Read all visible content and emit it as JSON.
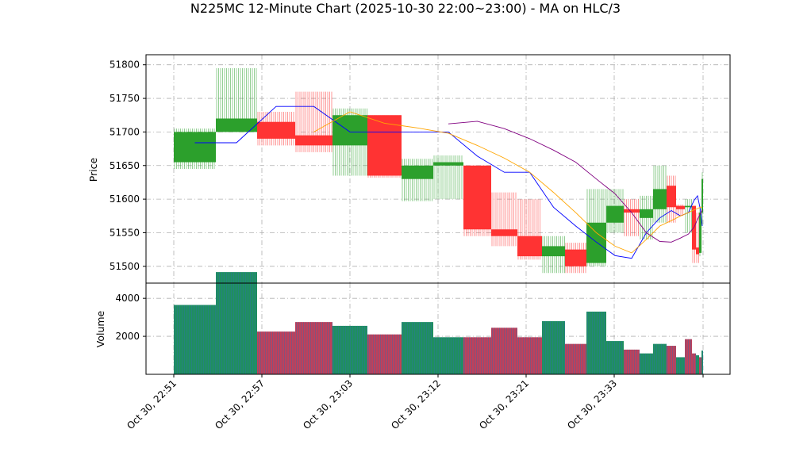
{
  "chart_data": {
    "type": "candlestick",
    "title": "N225MC 12-Minute Chart (2025-10-30 22:00~23:00) - MA on HLC/3",
    "price_panel": {
      "ylabel": "Price",
      "ylim": [
        51475,
        1815
      ],
      "yticks": [
        51500,
        51550,
        51600,
        51650,
        51700,
        51750,
        51800
      ],
      "candles": [
        {
          "o": 51655,
          "h": 51705,
          "l": 51645,
          "c": 51700
        },
        {
          "o": 51700,
          "h": 51795,
          "l": 51700,
          "c": 51720
        },
        {
          "o": 51715,
          "h": 51730,
          "l": 51680,
          "c": 51690
        },
        {
          "o": 51695,
          "h": 51760,
          "l": 51670,
          "c": 51680
        },
        {
          "o": 51680,
          "h": 51735,
          "l": 51635,
          "c": 51725
        },
        {
          "o": 51725,
          "h": 51725,
          "l": 51632,
          "c": 51635
        },
        {
          "o": 51630,
          "h": 51660,
          "l": 51597,
          "c": 51650
        },
        {
          "o": 51650,
          "h": 51665,
          "l": 51600,
          "c": 51655
        },
        {
          "o": 51650,
          "h": 51650,
          "l": 51545,
          "c": 51555
        },
        {
          "o": 51555,
          "h": 51610,
          "l": 51530,
          "c": 51545
        },
        {
          "o": 51545,
          "h": 51600,
          "l": 51510,
          "c": 51515
        },
        {
          "o": 51515,
          "h": 51545,
          "l": 51490,
          "c": 51530
        },
        {
          "o": 51525,
          "h": 51535,
          "l": 51490,
          "c": 51500
        },
        {
          "o": 51505,
          "h": 51615,
          "l": 51500,
          "c": 51565
        },
        {
          "o": 51565,
          "h": 51615,
          "l": 51550,
          "c": 51590
        },
        {
          "o": 51585,
          "h": 51600,
          "l": 51545,
          "c": 51580
        },
        {
          "o": 51572,
          "h": 51605,
          "l": 51540,
          "c": 51585
        },
        {
          "o": 51585,
          "h": 51650,
          "l": 51565,
          "c": 51615
        },
        {
          "o": 51620,
          "h": 51635,
          "l": 51565,
          "c": 51588
        },
        {
          "o": 51590,
          "h": 51592,
          "l": 51575,
          "c": 51585
        },
        {
          "o": 51588,
          "h": 51600,
          "l": 51550,
          "c": 51590
        },
        {
          "o": 51590,
          "h": 51590,
          "l": 51505,
          "c": 51525
        },
        {
          "o": 51528,
          "h": 51580,
          "l": 51505,
          "c": 51518
        },
        {
          "o": 51520,
          "h": 51590,
          "l": 51515,
          "c": 51580
        },
        {
          "o": 51580,
          "h": 51640,
          "l": 51560,
          "c": 51630
        }
      ],
      "ma_series": [
        {
          "name": "MA-blue",
          "color": "#0000ff",
          "values": [
            51684,
            51684,
            51738,
            51738,
            51700,
            51700,
            51700,
            51700,
            51664,
            51640,
            51640,
            51588,
            51560,
            51536,
            51516,
            51512,
            51550,
            51572,
            51583,
            51575,
            51580,
            51598,
            51605,
            51585,
            51560
          ]
        },
        {
          "name": "MA-orange",
          "color": "#ffa500",
          "values": [
            51700,
            51730,
            51713,
            51706,
            51698,
            51680,
            51661,
            51640,
            51610,
            51580,
            51550,
            51530,
            51520,
            51540,
            51560,
            51568,
            51575,
            51580,
            51584,
            51586,
            51588,
            51588
          ]
        },
        {
          "name": "MA-purple",
          "color": "#800080",
          "values": [
            51712,
            51716,
            51705,
            51690,
            51673,
            51655,
            51630,
            51608,
            51580,
            51550,
            51537,
            51536,
            51542,
            51548,
            51558,
            51570,
            51578,
            51584
          ]
        }
      ]
    },
    "volume_panel": {
      "ylabel": "Volume",
      "ylim": [
        0,
        4800
      ],
      "yticks": [
        2000,
        4000
      ],
      "bars": [
        {
          "v": 3650,
          "up": true
        },
        {
          "v": 5380,
          "up": true
        },
        {
          "v": 2250,
          "up": false
        },
        {
          "v": 2750,
          "up": false
        },
        {
          "v": 2550,
          "up": true
        },
        {
          "v": 2100,
          "up": false
        },
        {
          "v": 2750,
          "up": true
        },
        {
          "v": 1950,
          "up": true
        },
        {
          "v": 1950,
          "up": false
        },
        {
          "v": 2450,
          "up": false
        },
        {
          "v": 1950,
          "up": false
        },
        {
          "v": 2800,
          "up": true
        },
        {
          "v": 1600,
          "up": false
        },
        {
          "v": 3300,
          "up": true
        },
        {
          "v": 1750,
          "up": true
        },
        {
          "v": 1300,
          "up": false
        },
        {
          "v": 1100,
          "up": true
        },
        {
          "v": 1600,
          "up": true
        },
        {
          "v": 1500,
          "up": false
        },
        {
          "v": 900,
          "up": true
        },
        {
          "v": 1850,
          "up": false
        },
        {
          "v": 1100,
          "up": false
        },
        {
          "v": 1000,
          "up": true
        },
        {
          "v": 900,
          "up": false
        },
        {
          "v": 1250,
          "up": true
        }
      ]
    },
    "x_tick_labels": [
      "Oct 30, 22:51",
      "Oct 30, 22:57",
      "Oct 30, 23:03",
      "Oct 30, 23:12",
      "Oct 30, 23:21",
      "Oct 30, 23:33"
    ],
    "colors": {
      "up": "#2ca02c",
      "down": "#ff3333",
      "grid": "#b0b0b0",
      "volume_up": "#1f8f5f",
      "volume_down": "#c0405a"
    }
  }
}
